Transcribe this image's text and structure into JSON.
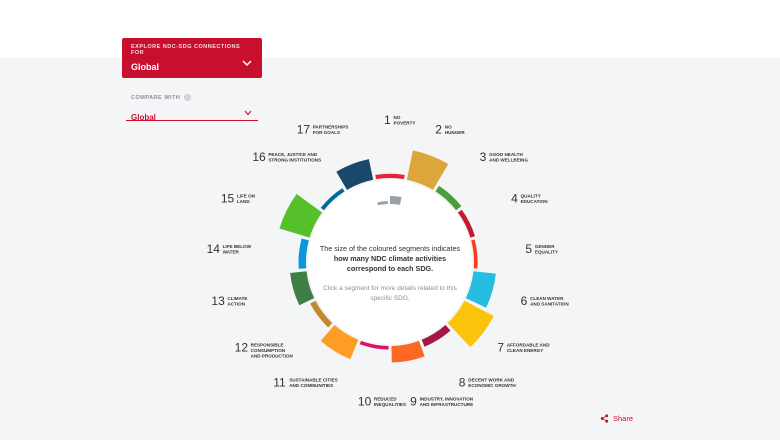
{
  "explore": {
    "label": "EXPLORE NDC-SDG CONNECTIONS FOR",
    "value": "Global"
  },
  "compare": {
    "label": "COMPARE WITH",
    "value": "Global"
  },
  "center": {
    "main_prefix": "The size of the coloured segments indicates ",
    "main_bold": "how many NDC climate activities correspond to each SDG.",
    "sub": "Click a segment for more details related to this specific SDG."
  },
  "share_label": "Share",
  "sdgs": [
    {
      "n": "1",
      "l1": "NO",
      "l2": "POVERTY",
      "color": "#e5243b",
      "weight": 0.04
    },
    {
      "n": "2",
      "l1": "NO",
      "l2": "HUNGER",
      "color": "#dda63a",
      "weight": 0.9
    },
    {
      "n": "3",
      "l1": "GOOD HEALTH",
      "l2": "AND WELLBEING",
      "color": "#4c9f38",
      "weight": 0.12
    },
    {
      "n": "4",
      "l1": "QUALITY",
      "l2": "EDUCATION",
      "color": "#c5192d",
      "weight": 0.06
    },
    {
      "n": "5",
      "l1": "GENDER",
      "l2": "EQUALITY",
      "color": "#ff3a21",
      "weight": 0.02
    },
    {
      "n": "6",
      "l1": "CLEAN WATER",
      "l2": "AND SANITATION",
      "color": "#26bde2",
      "weight": 0.65
    },
    {
      "n": "7",
      "l1": "AFFORDABLE AND",
      "l2": "CLEAN ENERGY",
      "color": "#fcc30b",
      "weight": 1.0
    },
    {
      "n": "8",
      "l1": "DECENT WORK AND",
      "l2": "ECONOMIC GROWTH",
      "color": "#a21942",
      "weight": 0.15
    },
    {
      "n": "9",
      "l1": "INDUSTRY, INNOVATION",
      "l2": "AND INFRASTRUCTURE",
      "color": "#fd6925",
      "weight": 0.45
    },
    {
      "n": "10",
      "l1": "REDUCED",
      "l2": "INEQUALITIES",
      "color": "#dd1367",
      "weight": 0.02
    },
    {
      "n": "11",
      "l1": "SUSTAINABLE CITIES",
      "l2": "AND COMMUNITIES",
      "color": "#fd9d24",
      "weight": 0.6
    },
    {
      "n": "12",
      "l1": "RESPONSIBLE",
      "l2": "CONSUMPTION",
      "l3": "AND PRODUCTION",
      "color": "#bf8b2e",
      "weight": 0.1
    },
    {
      "n": "13",
      "l1": "CLIMATE",
      "l2": "ACTION",
      "color": "#3f7e44",
      "weight": 0.45
    },
    {
      "n": "14",
      "l1": "LIFE BELOW",
      "l2": "WATER",
      "color": "#0a97d9",
      "weight": 0.15
    },
    {
      "n": "15",
      "l1": "LIFE ON",
      "l2": "LAND",
      "color": "#56c02b",
      "weight": 0.95
    },
    {
      "n": "16",
      "l1": "PEACE, JUSTICE AND",
      "l2": "STRONG INSTITUTIONS",
      "color": "#00689d",
      "weight": 0.03
    },
    {
      "n": "17",
      "l1": "PARTNERSHIPS",
      "l2": "FOR GOALS",
      "color": "#19486a",
      "weight": 0.6
    }
  ]
}
